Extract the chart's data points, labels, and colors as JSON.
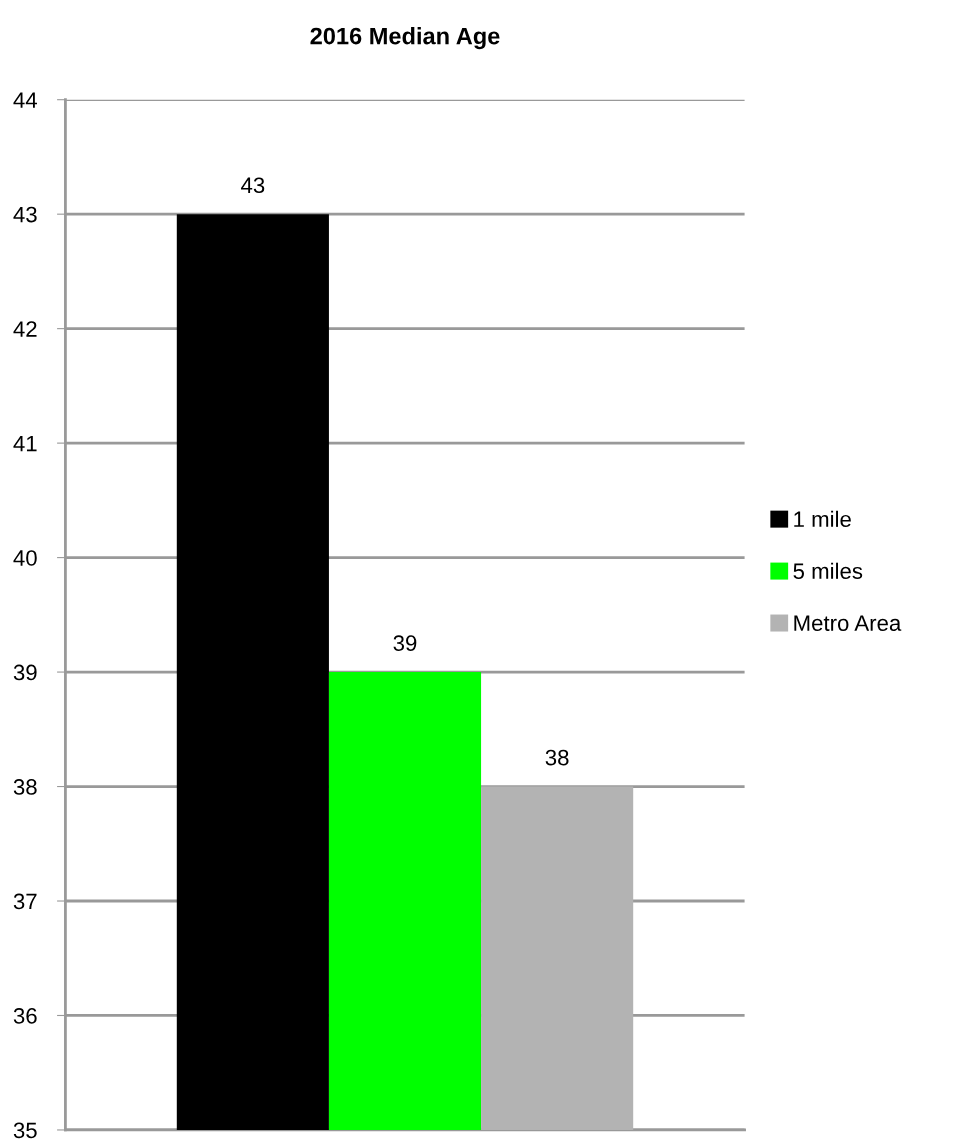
{
  "chart_data": {
    "type": "bar",
    "title": "2016 Median Age",
    "categories": [
      null
    ],
    "series": [
      {
        "name": "1 mile",
        "color": "#000000",
        "values": [
          43
        ]
      },
      {
        "name": "5 miles",
        "color": "#00ff00",
        "values": [
          39
        ]
      },
      {
        "name": "Metro Area",
        "color": "#b3b3b3",
        "values": [
          38
        ]
      }
    ],
    "ylim": [
      35,
      44
    ],
    "yticks": [
      35,
      36,
      37,
      38,
      39,
      40,
      41,
      42,
      43,
      44
    ],
    "grid": "y",
    "legend": "right",
    "data_labels": true
  }
}
